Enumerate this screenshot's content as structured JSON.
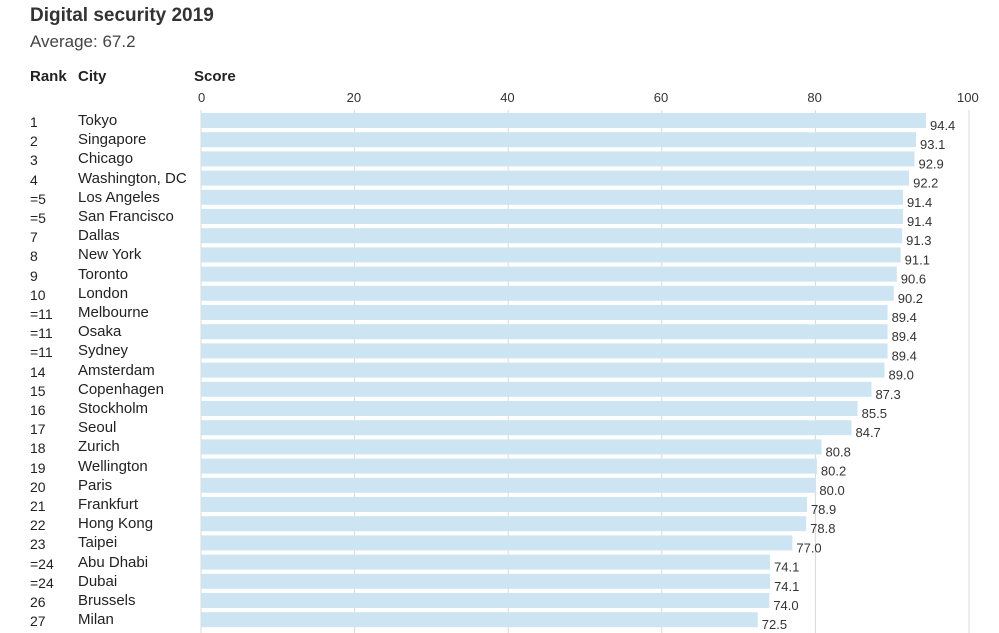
{
  "header": {
    "title": "Digital security 2019",
    "subtitle": "Average: 67.2",
    "col_rank": "Rank",
    "col_city": "City",
    "col_score": "Score"
  },
  "chart_data": {
    "type": "bar",
    "orientation": "horizontal",
    "title": "Digital security 2019",
    "subtitle": "Average: 67.2",
    "xlim": [
      0,
      100
    ],
    "xticks": [
      "0",
      "20",
      "40",
      "60",
      "80",
      "100"
    ],
    "bar_color": "#cde4f3",
    "grid": true,
    "rows": [
      {
        "rank": "1",
        "city": "Tokyo",
        "value": 94.4,
        "label": "94.4"
      },
      {
        "rank": "2",
        "city": "Singapore",
        "value": 93.1,
        "label": "93.1"
      },
      {
        "rank": "3",
        "city": "Chicago",
        "value": 92.9,
        "label": "92.9"
      },
      {
        "rank": "4",
        "city": "Washington, DC",
        "value": 92.2,
        "label": "92.2"
      },
      {
        "rank": "=5",
        "city": "Los Angeles",
        "value": 91.4,
        "label": "91.4"
      },
      {
        "rank": "=5",
        "city": "San Francisco",
        "value": 91.4,
        "label": "91.4"
      },
      {
        "rank": "7",
        "city": "Dallas",
        "value": 91.3,
        "label": "91.3"
      },
      {
        "rank": "8",
        "city": "New York",
        "value": 91.1,
        "label": "91.1"
      },
      {
        "rank": "9",
        "city": "Toronto",
        "value": 90.6,
        "label": "90.6"
      },
      {
        "rank": "10",
        "city": "London",
        "value": 90.2,
        "label": "90.2"
      },
      {
        "rank": "=11",
        "city": "Melbourne",
        "value": 89.4,
        "label": "89.4"
      },
      {
        "rank": "=11",
        "city": "Osaka",
        "value": 89.4,
        "label": "89.4"
      },
      {
        "rank": "=11",
        "city": "Sydney",
        "value": 89.4,
        "label": "89.4"
      },
      {
        "rank": "14",
        "city": "Amsterdam",
        "value": 89.0,
        "label": "89.0"
      },
      {
        "rank": "15",
        "city": "Copenhagen",
        "value": 87.3,
        "label": "87.3"
      },
      {
        "rank": "16",
        "city": "Stockholm",
        "value": 85.5,
        "label": "85.5"
      },
      {
        "rank": "17",
        "city": "Seoul",
        "value": 84.7,
        "label": "84.7"
      },
      {
        "rank": "18",
        "city": "Zurich",
        "value": 80.8,
        "label": "80.8"
      },
      {
        "rank": "19",
        "city": "Wellington",
        "value": 80.2,
        "label": "80.2"
      },
      {
        "rank": "20",
        "city": "Paris",
        "value": 80.0,
        "label": "80.0"
      },
      {
        "rank": "21",
        "city": "Frankfurt",
        "value": 78.9,
        "label": "78.9"
      },
      {
        "rank": "22",
        "city": "Hong Kong",
        "value": 78.8,
        "label": "78.8"
      },
      {
        "rank": "23",
        "city": "Taipei",
        "value": 77.0,
        "label": "77.0"
      },
      {
        "rank": "=24",
        "city": "Abu Dhabi",
        "value": 74.1,
        "label": "74.1"
      },
      {
        "rank": "=24",
        "city": "Dubai",
        "value": 74.1,
        "label": "74.1"
      },
      {
        "rank": "26",
        "city": "Brussels",
        "value": 74.0,
        "label": "74.0"
      },
      {
        "rank": "27",
        "city": "Milan",
        "value": 72.5,
        "label": "72.5"
      }
    ]
  }
}
